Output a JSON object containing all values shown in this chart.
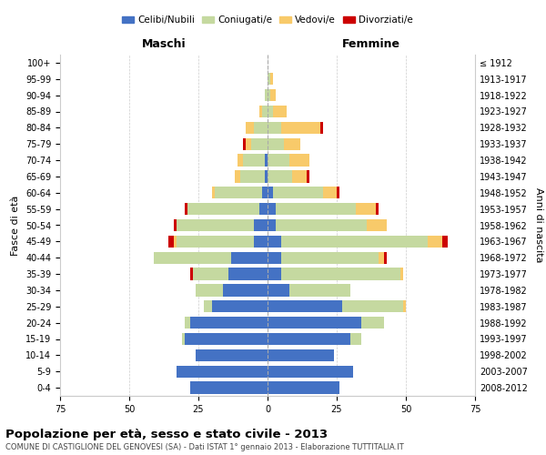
{
  "age_groups": [
    "0-4",
    "5-9",
    "10-14",
    "15-19",
    "20-24",
    "25-29",
    "30-34",
    "35-39",
    "40-44",
    "45-49",
    "50-54",
    "55-59",
    "60-64",
    "65-69",
    "70-74",
    "75-79",
    "80-84",
    "85-89",
    "90-94",
    "95-99",
    "100+"
  ],
  "birth_years": [
    "2008-2012",
    "2003-2007",
    "1998-2002",
    "1993-1997",
    "1988-1992",
    "1983-1987",
    "1978-1982",
    "1973-1977",
    "1968-1972",
    "1963-1967",
    "1958-1962",
    "1953-1957",
    "1948-1952",
    "1943-1947",
    "1938-1942",
    "1933-1937",
    "1928-1932",
    "1923-1927",
    "1918-1922",
    "1913-1917",
    "≤ 1912"
  ],
  "colors": {
    "celibi": "#4472C4",
    "coniugati": "#C5D9A0",
    "vedovi": "#F8CA6A",
    "divorziati": "#CC0000"
  },
  "males": {
    "celibi": [
      28,
      33,
      26,
      30,
      28,
      20,
      16,
      14,
      13,
      5,
      5,
      3,
      2,
      1,
      1,
      0,
      0,
      0,
      0,
      0,
      0
    ],
    "coniugati": [
      0,
      0,
      0,
      1,
      2,
      3,
      10,
      13,
      28,
      28,
      28,
      26,
      17,
      9,
      8,
      6,
      5,
      2,
      1,
      0,
      0
    ],
    "vedovi": [
      0,
      0,
      0,
      0,
      0,
      0,
      0,
      0,
      0,
      1,
      0,
      0,
      1,
      2,
      2,
      2,
      3,
      1,
      0,
      0,
      0
    ],
    "divorziati": [
      0,
      0,
      0,
      0,
      0,
      0,
      0,
      1,
      0,
      2,
      1,
      1,
      0,
      0,
      0,
      1,
      0,
      0,
      0,
      0,
      0
    ]
  },
  "females": {
    "nubili": [
      26,
      31,
      24,
      30,
      34,
      27,
      8,
      5,
      5,
      5,
      3,
      3,
      2,
      0,
      0,
      0,
      0,
      0,
      0,
      0,
      0
    ],
    "coniugate": [
      0,
      0,
      0,
      4,
      8,
      22,
      22,
      43,
      35,
      53,
      33,
      29,
      18,
      9,
      8,
      6,
      5,
      2,
      1,
      1,
      0
    ],
    "vedove": [
      0,
      0,
      0,
      0,
      0,
      1,
      0,
      1,
      2,
      5,
      7,
      7,
      5,
      5,
      7,
      6,
      14,
      5,
      2,
      1,
      0
    ],
    "divorziate": [
      0,
      0,
      0,
      0,
      0,
      0,
      0,
      0,
      1,
      2,
      0,
      1,
      1,
      1,
      0,
      0,
      1,
      0,
      0,
      0,
      0
    ]
  },
  "xlim": 75,
  "title": "Popolazione per età, sesso e stato civile - 2013",
  "subtitle": "COMUNE DI CASTIGLIONE DEL GENOVESI (SA) - Dati ISTAT 1° gennaio 2013 - Elaborazione TUTTITALIA.IT",
  "xlabel_left": "Maschi",
  "xlabel_right": "Femmine",
  "ylabel_left": "Fasce di età",
  "ylabel_right": "Anni di nascita",
  "legend_labels": [
    "Celibi/Nubili",
    "Coniugati/e",
    "Vedovi/e",
    "Divorziati/e"
  ],
  "background_color": "#FFFFFF",
  "grid_color": "#CCCCCC"
}
